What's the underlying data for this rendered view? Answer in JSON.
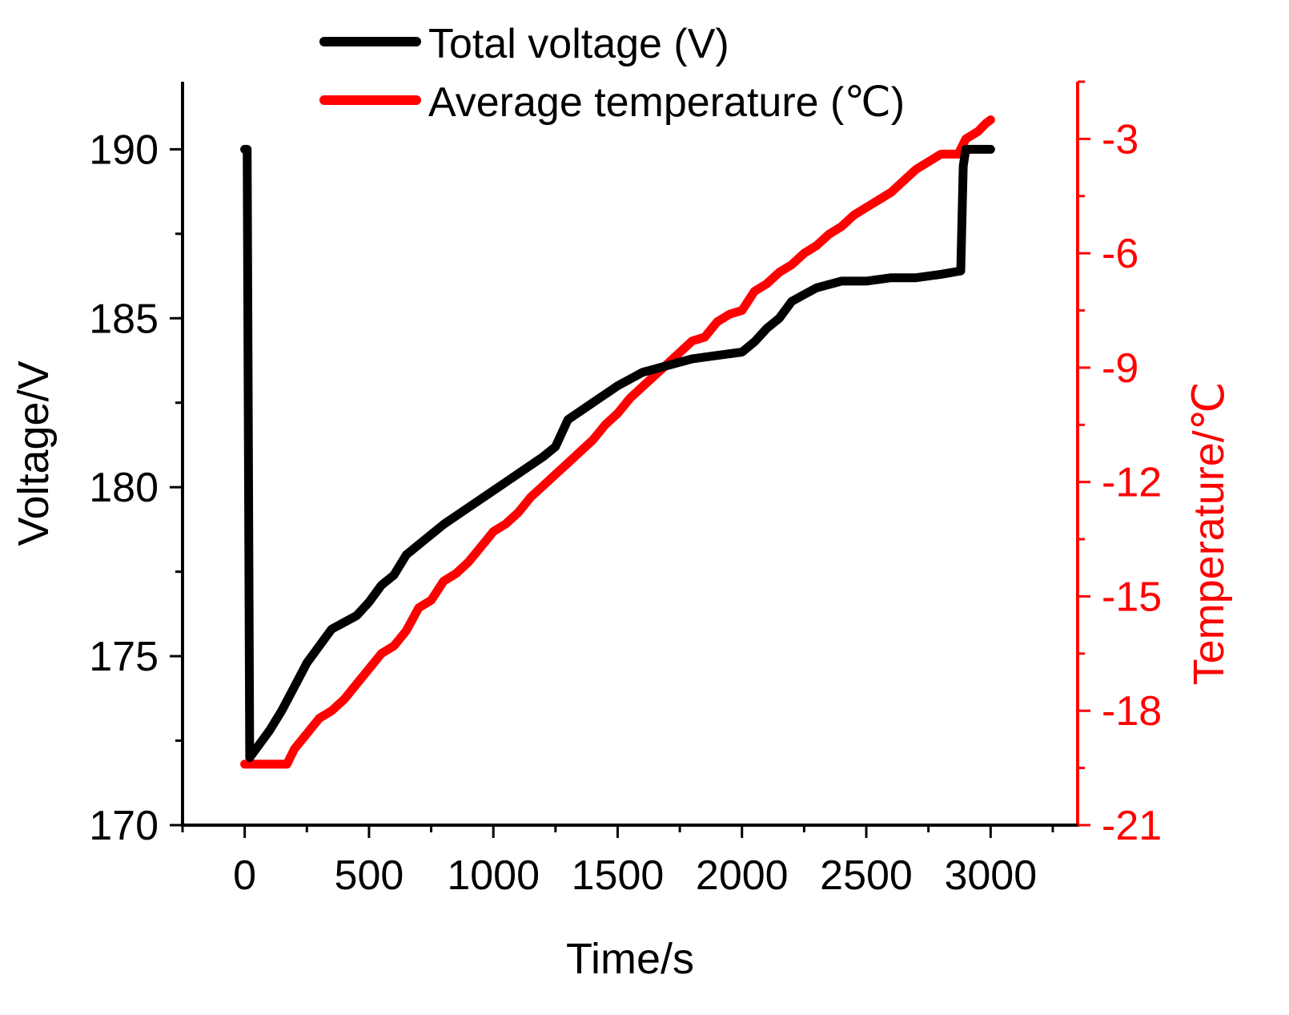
{
  "chart_data": {
    "type": "line",
    "title": "",
    "xlabel": "Time/s",
    "ylabel": "Voltage/V",
    "y2label": "Temperature/℃",
    "xlim": [
      -250,
      3350
    ],
    "ylim": [
      170,
      192
    ],
    "y2lim": [
      -21,
      -1.5
    ],
    "xticks": [
      0,
      500,
      1000,
      1500,
      2000,
      2500,
      3000
    ],
    "yticks": [
      170,
      175,
      180,
      185,
      190
    ],
    "y2ticks": [
      -21,
      -18,
      -15,
      -12,
      -9,
      -6,
      -3
    ],
    "grid": false,
    "legend_position": "top-center",
    "colors": {
      "voltage": "#000000",
      "temperature": "#ff0000",
      "axis": "#000000",
      "axis2": "#ff0000"
    },
    "series": [
      {
        "name": "Total voltage (V)",
        "axis": "left",
        "x": [
          0,
          10,
          20,
          50,
          100,
          150,
          200,
          250,
          300,
          350,
          400,
          450,
          500,
          550,
          600,
          650,
          700,
          800,
          900,
          1000,
          1100,
          1200,
          1250,
          1300,
          1400,
          1500,
          1600,
          1700,
          1800,
          1900,
          2000,
          2050,
          2100,
          2150,
          2200,
          2250,
          2300,
          2400,
          2500,
          2600,
          2700,
          2800,
          2880,
          2890,
          2900,
          2950,
          3000
        ],
        "values": [
          190.0,
          190.0,
          172.0,
          172.3,
          172.8,
          173.4,
          174.1,
          174.8,
          175.3,
          175.8,
          176.0,
          176.2,
          176.6,
          177.1,
          177.4,
          178.0,
          178.3,
          178.9,
          179.4,
          179.9,
          180.4,
          180.9,
          181.2,
          182.0,
          182.5,
          183.0,
          183.4,
          183.6,
          183.8,
          183.9,
          184.0,
          184.3,
          184.7,
          185.0,
          185.5,
          185.7,
          185.9,
          186.1,
          186.1,
          186.2,
          186.2,
          186.3,
          186.4,
          189.5,
          190.0,
          190.0,
          190.0
        ]
      },
      {
        "name": "Average temperature (℃)",
        "axis": "right",
        "x": [
          0,
          50,
          100,
          150,
          170,
          200,
          250,
          300,
          350,
          400,
          450,
          500,
          550,
          600,
          650,
          700,
          750,
          800,
          850,
          900,
          950,
          1000,
          1050,
          1100,
          1150,
          1200,
          1250,
          1300,
          1350,
          1400,
          1450,
          1500,
          1550,
          1600,
          1650,
          1700,
          1750,
          1800,
          1850,
          1900,
          1950,
          2000,
          2050,
          2100,
          2150,
          2200,
          2250,
          2300,
          2350,
          2400,
          2450,
          2500,
          2550,
          2600,
          2650,
          2700,
          2750,
          2800,
          2850,
          2870,
          2900,
          2950,
          2980,
          3000
        ],
        "values": [
          -19.4,
          -19.4,
          -19.4,
          -19.4,
          -19.4,
          -19.0,
          -18.6,
          -18.2,
          -18.0,
          -17.7,
          -17.3,
          -16.9,
          -16.5,
          -16.3,
          -15.9,
          -15.3,
          -15.1,
          -14.6,
          -14.4,
          -14.1,
          -13.7,
          -13.3,
          -13.1,
          -12.8,
          -12.4,
          -12.1,
          -11.8,
          -11.5,
          -11.2,
          -10.9,
          -10.5,
          -10.2,
          -9.8,
          -9.5,
          -9.2,
          -8.9,
          -8.6,
          -8.3,
          -8.2,
          -7.8,
          -7.6,
          -7.5,
          -7.0,
          -6.8,
          -6.5,
          -6.3,
          -6.0,
          -5.8,
          -5.5,
          -5.3,
          -5.0,
          -4.8,
          -4.6,
          -4.4,
          -4.1,
          -3.8,
          -3.6,
          -3.4,
          -3.4,
          -3.4,
          -3.0,
          -2.8,
          -2.6,
          -2.5
        ]
      }
    ]
  }
}
